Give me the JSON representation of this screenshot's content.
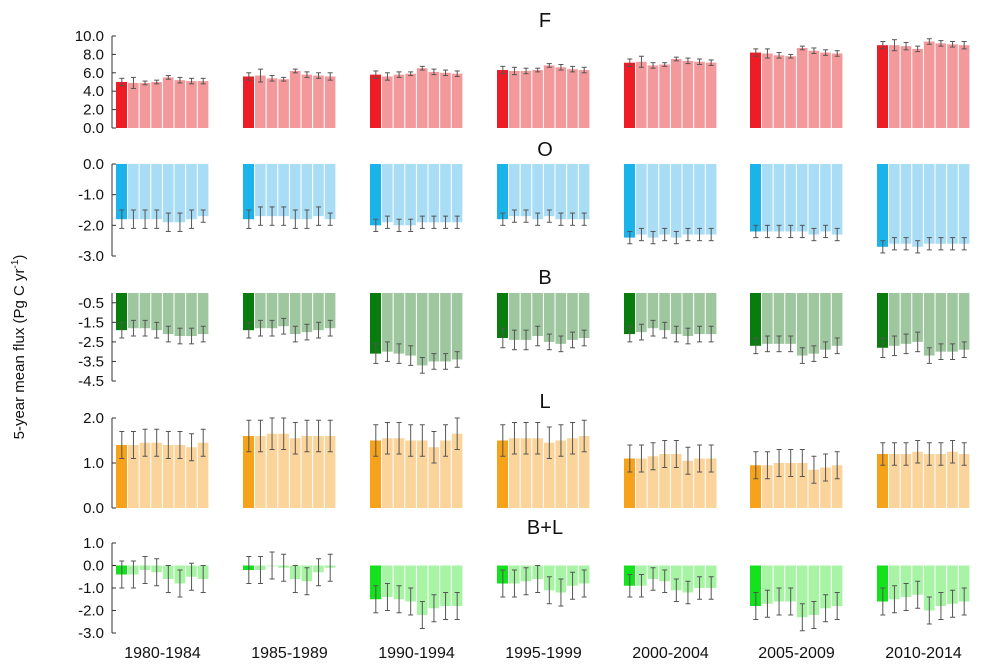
{
  "chart_data": {
    "type": "bar",
    "ylabel": "5-year mean flux (Pg C yr",
    "ylabel_sup": "-1",
    "ylabel_close": ")",
    "periods": [
      "1980-1984",
      "1985-1989",
      "1990-1994",
      "1995-1999",
      "2000-2004",
      "2005-2009",
      "2010-2014"
    ],
    "bars_per_period": 8,
    "panels": [
      {
        "title": "F",
        "ylim": [
          0,
          10
        ],
        "ticks": [
          0,
          2,
          4,
          6,
          8,
          10
        ],
        "tick_labels": [
          "0.0",
          "2.0",
          "4.0",
          "6.0",
          "8.0",
          "10.0"
        ],
        "color_main": "#ee1c25",
        "color_light": "#f4999b",
        "values": [
          [
            5.0,
            4.9,
            4.9,
            5.0,
            5.5,
            5.2,
            5.1,
            5.1
          ],
          [
            5.6,
            5.7,
            5.4,
            5.3,
            6.2,
            5.8,
            5.7,
            5.6
          ],
          [
            5.8,
            5.6,
            5.8,
            5.9,
            6.5,
            6.1,
            6.0,
            5.9
          ],
          [
            6.3,
            6.2,
            6.2,
            6.3,
            6.8,
            6.6,
            6.4,
            6.3
          ],
          [
            7.1,
            7.2,
            6.8,
            6.9,
            7.5,
            7.3,
            7.2,
            7.1
          ],
          [
            8.2,
            8.1,
            7.9,
            7.8,
            8.7,
            8.4,
            8.2,
            8.1
          ],
          [
            9.0,
            9.0,
            8.9,
            8.6,
            9.4,
            9.2,
            9.1,
            9.0
          ]
        ],
        "errors": [
          [
            0.4,
            0.6,
            0.2,
            0.2,
            0.2,
            0.3,
            0.3,
            0.3
          ],
          [
            0.4,
            0.7,
            0.3,
            0.2,
            0.2,
            0.3,
            0.3,
            0.4
          ],
          [
            0.4,
            0.4,
            0.3,
            0.2,
            0.2,
            0.3,
            0.3,
            0.3
          ],
          [
            0.4,
            0.4,
            0.3,
            0.2,
            0.2,
            0.3,
            0.3,
            0.3
          ],
          [
            0.4,
            0.6,
            0.3,
            0.2,
            0.2,
            0.3,
            0.3,
            0.3
          ],
          [
            0.4,
            0.5,
            0.3,
            0.2,
            0.2,
            0.3,
            0.3,
            0.3
          ],
          [
            0.4,
            0.6,
            0.4,
            0.3,
            0.3,
            0.3,
            0.3,
            0.4
          ]
        ]
      },
      {
        "title": "O",
        "ylim": [
          -3,
          0
        ],
        "ticks": [
          0,
          -1,
          -2,
          -3
        ],
        "tick_labels": [
          "0.0",
          "-1.0",
          "-2.0",
          "-3.0"
        ],
        "color_main": "#1bb4ea",
        "color_light": "#a9ddf5",
        "values": [
          [
            -1.8,
            -1.8,
            -1.8,
            -1.8,
            -1.9,
            -1.9,
            -1.8,
            -1.7
          ],
          [
            -1.8,
            -1.7,
            -1.7,
            -1.7,
            -1.8,
            -1.8,
            -1.7,
            -1.8
          ],
          [
            -2.0,
            -1.9,
            -2.0,
            -2.0,
            -1.9,
            -1.9,
            -1.9,
            -1.9
          ],
          [
            -1.8,
            -1.7,
            -1.7,
            -1.8,
            -1.7,
            -1.8,
            -1.8,
            -1.8
          ],
          [
            -2.4,
            -2.3,
            -2.4,
            -2.3,
            -2.4,
            -2.3,
            -2.3,
            -2.3
          ],
          [
            -2.2,
            -2.2,
            -2.2,
            -2.2,
            -2.2,
            -2.3,
            -2.2,
            -2.3
          ],
          [
            -2.7,
            -2.6,
            -2.6,
            -2.7,
            -2.6,
            -2.6,
            -2.6,
            -2.6
          ]
        ],
        "errors": [
          [
            0.3,
            0.3,
            0.3,
            0.3,
            0.3,
            0.3,
            0.3,
            0.2
          ],
          [
            0.3,
            0.3,
            0.3,
            0.3,
            0.3,
            0.3,
            0.3,
            0.2
          ],
          [
            0.2,
            0.2,
            0.2,
            0.2,
            0.2,
            0.2,
            0.2,
            0.2
          ],
          [
            0.2,
            0.2,
            0.2,
            0.2,
            0.2,
            0.2,
            0.2,
            0.2
          ],
          [
            0.2,
            0.2,
            0.2,
            0.2,
            0.2,
            0.2,
            0.2,
            0.2
          ],
          [
            0.2,
            0.2,
            0.2,
            0.2,
            0.2,
            0.2,
            0.2,
            0.2
          ],
          [
            0.2,
            0.2,
            0.2,
            0.2,
            0.2,
            0.2,
            0.2,
            0.2
          ]
        ]
      },
      {
        "title": "B",
        "ylim": [
          -4.5,
          0
        ],
        "ticks": [
          -0.5,
          -1.5,
          -2.5,
          -3.5,
          -4.5
        ],
        "tick_labels": [
          "-0.5",
          "-1.5",
          "-2.5",
          "-3.5",
          "-4.5"
        ],
        "color_main": "#087c0d",
        "color_light": "#9fc79f",
        "values": [
          [
            -1.9,
            -1.8,
            -1.8,
            -1.9,
            -2.1,
            -2.2,
            -2.2,
            -2.1
          ],
          [
            -1.9,
            -1.8,
            -1.8,
            -1.7,
            -2.1,
            -2.0,
            -1.9,
            -1.8
          ],
          [
            -3.1,
            -3.0,
            -3.1,
            -3.2,
            -3.7,
            -3.5,
            -3.5,
            -3.4
          ],
          [
            -2.3,
            -2.4,
            -2.4,
            -2.2,
            -2.5,
            -2.6,
            -2.4,
            -2.3
          ],
          [
            -2.1,
            -2.0,
            -1.8,
            -1.9,
            -2.1,
            -2.2,
            -2.1,
            -2.1
          ],
          [
            -2.7,
            -2.6,
            -2.6,
            -2.6,
            -3.2,
            -3.1,
            -2.9,
            -2.7
          ],
          [
            -2.8,
            -2.7,
            -2.6,
            -2.5,
            -3.2,
            -3.0,
            -3.0,
            -2.9
          ]
        ],
        "errors": [
          [
            0.4,
            0.4,
            0.4,
            0.4,
            0.4,
            0.4,
            0.4,
            0.4
          ],
          [
            0.4,
            0.4,
            0.4,
            0.4,
            0.4,
            0.4,
            0.4,
            0.4
          ],
          [
            0.5,
            0.5,
            0.5,
            0.5,
            0.4,
            0.4,
            0.4,
            0.4
          ],
          [
            0.5,
            0.5,
            0.5,
            0.5,
            0.4,
            0.4,
            0.4,
            0.4
          ],
          [
            0.4,
            0.4,
            0.4,
            0.4,
            0.4,
            0.4,
            0.4,
            0.4
          ],
          [
            0.4,
            0.4,
            0.4,
            0.4,
            0.4,
            0.4,
            0.4,
            0.4
          ],
          [
            0.5,
            0.5,
            0.5,
            0.5,
            0.4,
            0.4,
            0.4,
            0.4
          ]
        ]
      },
      {
        "title": "L",
        "ylim": [
          0,
          2
        ],
        "ticks": [
          0,
          1,
          2
        ],
        "tick_labels": [
          "0.0",
          "1.0",
          "2.0"
        ],
        "color_main": "#f7a21b",
        "color_light": "#fad49a",
        "values": [
          [
            1.4,
            1.4,
            1.45,
            1.45,
            1.4,
            1.4,
            1.35,
            1.45
          ],
          [
            1.6,
            1.6,
            1.65,
            1.65,
            1.55,
            1.6,
            1.6,
            1.6
          ],
          [
            1.5,
            1.55,
            1.55,
            1.5,
            1.5,
            1.35,
            1.5,
            1.65
          ],
          [
            1.5,
            1.55,
            1.55,
            1.55,
            1.45,
            1.5,
            1.55,
            1.6
          ],
          [
            1.1,
            1.1,
            1.15,
            1.2,
            1.2,
            1.05,
            1.1,
            1.1
          ],
          [
            0.95,
            0.95,
            1.0,
            1.0,
            1.0,
            0.85,
            0.9,
            0.95
          ],
          [
            1.2,
            1.2,
            1.2,
            1.25,
            1.2,
            1.2,
            1.25,
            1.2
          ]
        ],
        "errors": [
          [
            0.3,
            0.3,
            0.3,
            0.3,
            0.3,
            0.3,
            0.3,
            0.3
          ],
          [
            0.35,
            0.35,
            0.35,
            0.35,
            0.35,
            0.35,
            0.35,
            0.35
          ],
          [
            0.35,
            0.35,
            0.35,
            0.35,
            0.35,
            0.35,
            0.35,
            0.35
          ],
          [
            0.35,
            0.35,
            0.35,
            0.35,
            0.35,
            0.35,
            0.35,
            0.35
          ],
          [
            0.3,
            0.3,
            0.3,
            0.3,
            0.3,
            0.3,
            0.3,
            0.3
          ],
          [
            0.3,
            0.3,
            0.3,
            0.3,
            0.3,
            0.3,
            0.3,
            0.3
          ],
          [
            0.25,
            0.25,
            0.25,
            0.25,
            0.25,
            0.25,
            0.25,
            0.25
          ]
        ]
      },
      {
        "title": "B+L",
        "ylim": [
          -3,
          1
        ],
        "ticks": [
          1,
          0,
          -1,
          -2,
          -3
        ],
        "tick_labels": [
          "1.0",
          "0.0",
          "-1.0",
          "-2.0",
          "-3.0"
        ],
        "color_main": "#14e21d",
        "color_light": "#a8f4a5",
        "values": [
          [
            -0.4,
            -0.4,
            -0.2,
            -0.3,
            -0.6,
            -0.8,
            -0.5,
            -0.6
          ],
          [
            -0.2,
            -0.2,
            0.0,
            -0.1,
            -0.6,
            -0.7,
            -0.3,
            -0.1
          ],
          [
            -1.5,
            -1.4,
            -1.5,
            -1.6,
            -2.2,
            -1.9,
            -1.8,
            -1.8
          ],
          [
            -0.8,
            -0.8,
            -0.7,
            -0.6,
            -1.1,
            -1.2,
            -0.9,
            -0.8
          ],
          [
            -0.9,
            -0.9,
            -0.6,
            -0.7,
            -1.1,
            -1.2,
            -1.0,
            -1.0
          ],
          [
            -1.8,
            -1.7,
            -1.6,
            -1.6,
            -2.3,
            -2.2,
            -1.9,
            -1.8
          ],
          [
            -1.6,
            -1.5,
            -1.4,
            -1.3,
            -2.0,
            -1.8,
            -1.7,
            -1.6
          ]
        ],
        "errors": [
          [
            0.6,
            0.6,
            0.6,
            0.6,
            0.6,
            0.6,
            0.6,
            0.6
          ],
          [
            0.6,
            0.6,
            0.6,
            0.6,
            0.6,
            0.6,
            0.6,
            0.6
          ],
          [
            0.6,
            0.6,
            0.6,
            0.6,
            0.6,
            0.6,
            0.6,
            0.6
          ],
          [
            0.6,
            0.6,
            0.6,
            0.6,
            0.6,
            0.6,
            0.6,
            0.6
          ],
          [
            0.5,
            0.5,
            0.5,
            0.5,
            0.5,
            0.5,
            0.5,
            0.5
          ],
          [
            0.6,
            0.6,
            0.6,
            0.6,
            0.6,
            0.6,
            0.6,
            0.6
          ],
          [
            0.6,
            0.6,
            0.6,
            0.6,
            0.6,
            0.6,
            0.6,
            0.6
          ]
        ]
      }
    ]
  }
}
